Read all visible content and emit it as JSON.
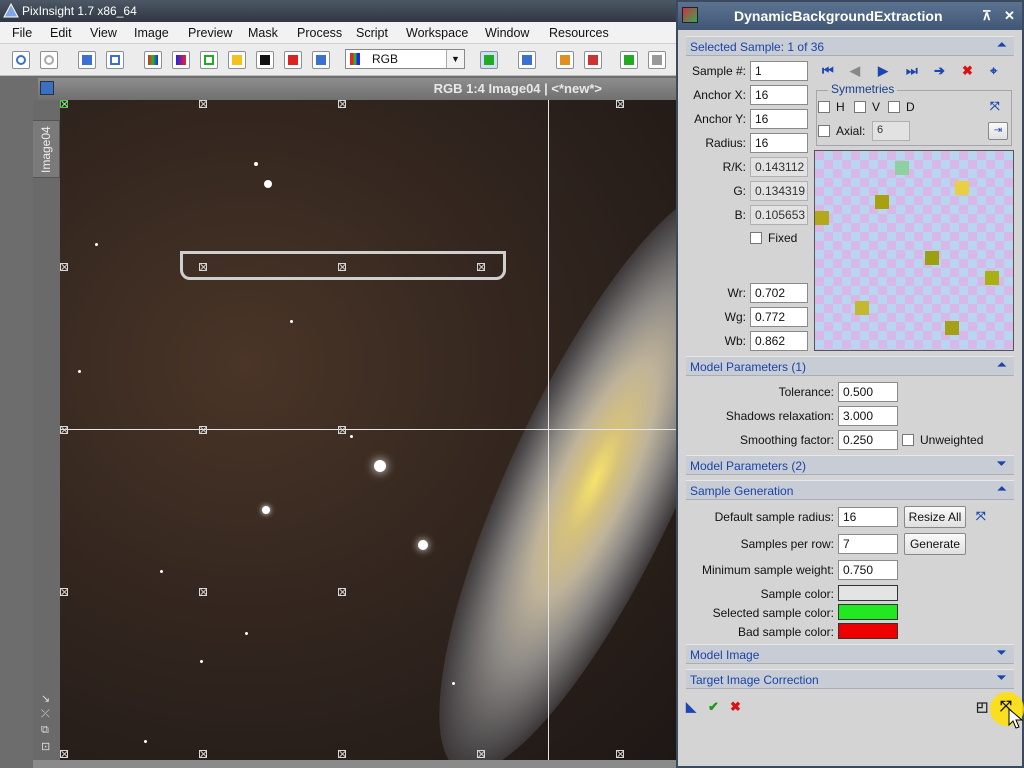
{
  "app": {
    "title": "PixInsight 1.7 x86_64"
  },
  "menu": [
    "File",
    "Edit",
    "View",
    "Image",
    "Preview",
    "Mask",
    "Process",
    "Script",
    "Workspace",
    "Window",
    "Resources"
  ],
  "toolbar": {
    "channel_select": "RGB"
  },
  "image_window": {
    "title": "RGB 1:4 Image04 | <*new*>",
    "tab_label": "Image04"
  },
  "panel": {
    "title": "DynamicBackgroundExtraction",
    "selected_section": "Selected Sample: 1 of 36",
    "sample_num_label": "Sample #:",
    "sample_num": "1",
    "anchor_x_label": "Anchor X:",
    "anchor_x": "16",
    "anchor_y_label": "Anchor Y:",
    "anchor_y": "16",
    "radius_label": "Radius:",
    "radius": "16",
    "rk_label": "R/K:",
    "rk": "0.143112",
    "g_label": "G:",
    "g": "0.134319",
    "b_label": "B:",
    "b": "0.105653",
    "fixed_label": "Fixed",
    "wr_label": "Wr:",
    "wr": "0.702",
    "wg_label": "Wg:",
    "wg": "0.772",
    "wb_label": "Wb:",
    "wb": "0.862",
    "symmetries_label": "Symmetries",
    "sym_h": "H",
    "sym_v": "V",
    "sym_d": "D",
    "axial_label": "Axial:",
    "axial": "6",
    "model1_section": "Model Parameters (1)",
    "tolerance_label": "Tolerance:",
    "tolerance": "0.500",
    "shadows_label": "Shadows relaxation:",
    "shadows": "3.000",
    "smoothing_label": "Smoothing factor:",
    "smoothing": "0.250",
    "unweighted_label": "Unweighted",
    "model2_section": "Model Parameters (2)",
    "samplegen_section": "Sample Generation",
    "default_radius_label": "Default sample radius:",
    "default_radius": "16",
    "resize_all": "Resize All",
    "per_row_label": "Samples per row:",
    "per_row": "7",
    "generate": "Generate",
    "min_weight_label": "Minimum sample weight:",
    "min_weight": "0.750",
    "sample_color_label": "Sample color:",
    "sample_color": "#e4e4e4",
    "selected_color_label": "Selected sample color:",
    "selected_color": "#22e822",
    "bad_color_label": "Bad sample color:",
    "bad_color": "#ee0000",
    "model_image_section": "Model Image",
    "target_section": "Target Image Correction"
  }
}
